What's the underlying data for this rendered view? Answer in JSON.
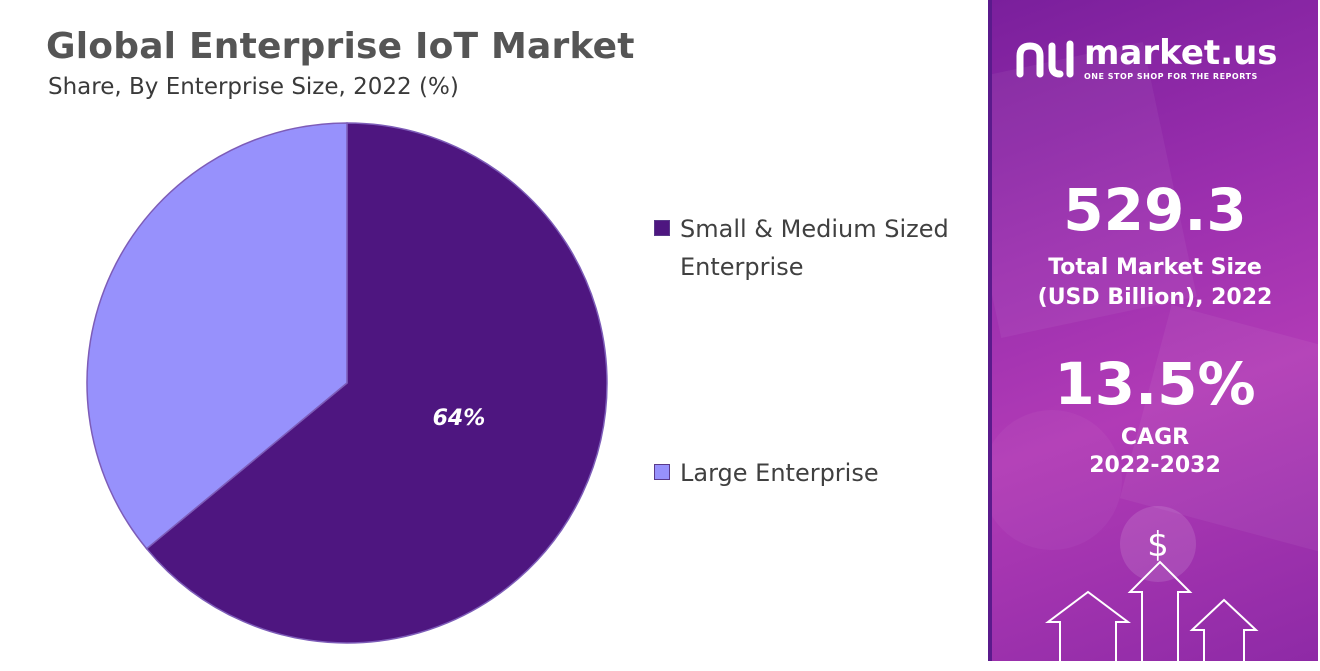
{
  "chart_data": {
    "type": "pie",
    "title": "Global Enterprise IoT Market",
    "subtitle": "Share, By Enterprise Size, 2022 (%)",
    "categories": [
      "Small & Medium Sized Enterprise",
      "Large Enterprise"
    ],
    "values": [
      64,
      36
    ],
    "data_labels": [
      "64%",
      ""
    ],
    "colors": [
      "#4e1680",
      "#9791fc"
    ],
    "legend_position": "right"
  },
  "sidebar": {
    "brand_name": "market.us",
    "brand_tagline": "ONE STOP SHOP FOR THE REPORTS",
    "market_size_value": "529.3",
    "market_size_label_line1": "Total Market Size",
    "market_size_label_line2": "(USD Billion), 2022",
    "cagr_value": "13.5%",
    "cagr_label": "CAGR",
    "cagr_period": "2022-2032",
    "icons": [
      "market-us-logo-icon",
      "dollar-icon",
      "up-arrow-icon"
    ]
  }
}
